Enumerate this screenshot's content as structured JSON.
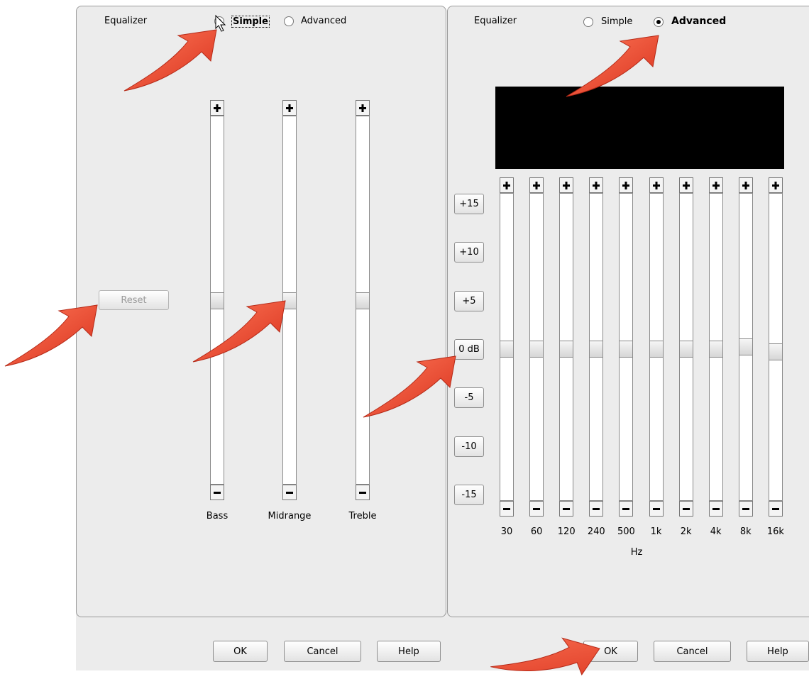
{
  "left_panel": {
    "title": "Equalizer",
    "modes": [
      "Simple",
      "Advanced"
    ],
    "reset": "Reset",
    "sliders": [
      "Bass",
      "Midrange",
      "Treble"
    ],
    "buttons": [
      "OK",
      "Cancel",
      "Help"
    ]
  },
  "right_panel": {
    "title": "Equalizer",
    "modes": [
      "Simple",
      "Advanced"
    ],
    "level_buttons": [
      "+15",
      "+10",
      "+5",
      "0 dB",
      "-5",
      "-10",
      "-15"
    ],
    "bands": [
      "30",
      "60",
      "120",
      "240",
      "500",
      "1k",
      "2k",
      "4k",
      "8k",
      "16k"
    ],
    "unit": "Hz",
    "buttons": [
      "OK",
      "Cancel",
      "Help"
    ]
  }
}
